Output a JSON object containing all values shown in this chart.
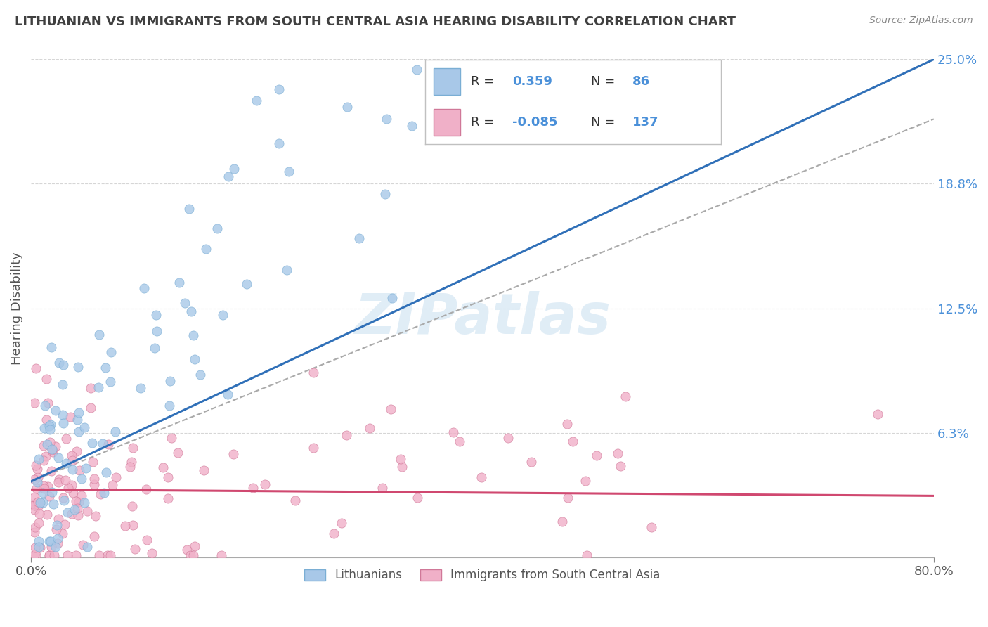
{
  "title": "LITHUANIAN VS IMMIGRANTS FROM SOUTH CENTRAL ASIA HEARING DISABILITY CORRELATION CHART",
  "source": "Source: ZipAtlas.com",
  "ylabel": "Hearing Disability",
  "xlim": [
    0.0,
    0.8
  ],
  "ylim": [
    0.0,
    0.25
  ],
  "yticks": [
    0.0,
    0.0625,
    0.125,
    0.1875,
    0.25
  ],
  "ytick_labels": [
    "",
    "6.3%",
    "12.5%",
    "18.8%",
    "25.0%"
  ],
  "xticks": [
    0.0,
    0.8
  ],
  "xtick_labels": [
    "0.0%",
    "80.0%"
  ],
  "watermark": "ZIPatlas",
  "R_blue": "0.359",
  "N_blue": "86",
  "R_pink": "-0.085",
  "N_pink": "137",
  "legend_label_blue": "Lithuanians",
  "legend_label_pink": "Immigrants from South Central Asia",
  "blue_dot_color": "#a8c8e8",
  "blue_dot_edge": "#7aaed4",
  "blue_line_color": "#3070b8",
  "pink_dot_color": "#f0b0c8",
  "pink_dot_edge": "#d07898",
  "pink_line_color": "#d04870",
  "dash_line_color": "#aaaaaa",
  "background_color": "#ffffff",
  "grid_color": "#cccccc",
  "title_color": "#404040",
  "right_tick_color": "#4a90d9",
  "watermark_color": "#c8dff0"
}
